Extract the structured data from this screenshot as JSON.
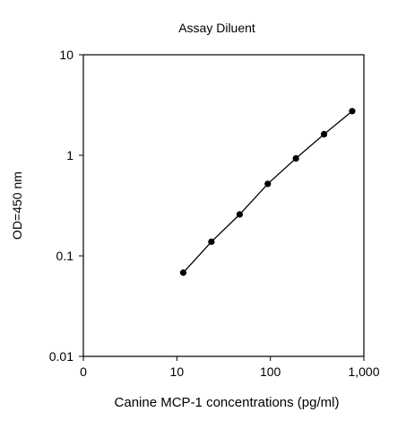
{
  "chart_data": {
    "type": "line",
    "title": "Assay Diluent",
    "xlabel": "Canine MCP-1 concentrations (pg/ml)",
    "ylabel": "OD=450 nm",
    "x_scale": "log",
    "y_scale": "log",
    "xlim": [
      1,
      1000
    ],
    "ylim": [
      0.01,
      10
    ],
    "x_ticks": [
      {
        "value": 1,
        "label": "0"
      },
      {
        "value": 10,
        "label": "10"
      },
      {
        "value": 100,
        "label": "100"
      },
      {
        "value": 1000,
        "label": "1,000"
      }
    ],
    "y_ticks": [
      {
        "value": 0.01,
        "label": "0.01"
      },
      {
        "value": 0.1,
        "label": "0.1"
      },
      {
        "value": 1,
        "label": "1"
      },
      {
        "value": 10,
        "label": "10"
      }
    ],
    "grid": false,
    "legend": "none",
    "series": [
      {
        "marker": "circle",
        "color": "#000000",
        "points": [
          {
            "x": 11.7,
            "y": 0.068
          },
          {
            "x": 23.4,
            "y": 0.138
          },
          {
            "x": 46.9,
            "y": 0.258
          },
          {
            "x": 93.8,
            "y": 0.52
          },
          {
            "x": 187.5,
            "y": 0.93
          },
          {
            "x": 375,
            "y": 1.62
          },
          {
            "x": 750,
            "y": 2.75
          }
        ]
      }
    ]
  }
}
